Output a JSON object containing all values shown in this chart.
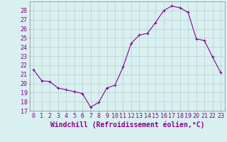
{
  "x": [
    0,
    1,
    2,
    3,
    4,
    5,
    6,
    7,
    8,
    9,
    10,
    11,
    12,
    13,
    14,
    15,
    16,
    17,
    18,
    19,
    20,
    21,
    22,
    23
  ],
  "y": [
    21.5,
    20.3,
    20.2,
    19.5,
    19.3,
    19.1,
    18.9,
    17.4,
    17.9,
    19.5,
    19.8,
    21.8,
    24.4,
    25.3,
    25.5,
    26.7,
    28.0,
    28.5,
    28.3,
    27.8,
    24.9,
    24.7,
    22.9,
    21.2
  ],
  "line_color": "#8B008B",
  "marker": "+",
  "marker_size": 3,
  "marker_linewidth": 0.8,
  "xlabel": "Windchill (Refroidissement éolien,°C)",
  "xlabel_fontsize": 7,
  "ylim": [
    17,
    29
  ],
  "yticks": [
    17,
    18,
    19,
    20,
    21,
    22,
    23,
    24,
    25,
    26,
    27,
    28
  ],
  "xticks": [
    0,
    1,
    2,
    3,
    4,
    5,
    6,
    7,
    8,
    9,
    10,
    11,
    12,
    13,
    14,
    15,
    16,
    17,
    18,
    19,
    20,
    21,
    22,
    23
  ],
  "background_color": "#d8f0f0",
  "grid_color": "#b0c8c8",
  "tick_label_fontsize": 6,
  "line_width": 0.8,
  "spine_color": "#888888"
}
